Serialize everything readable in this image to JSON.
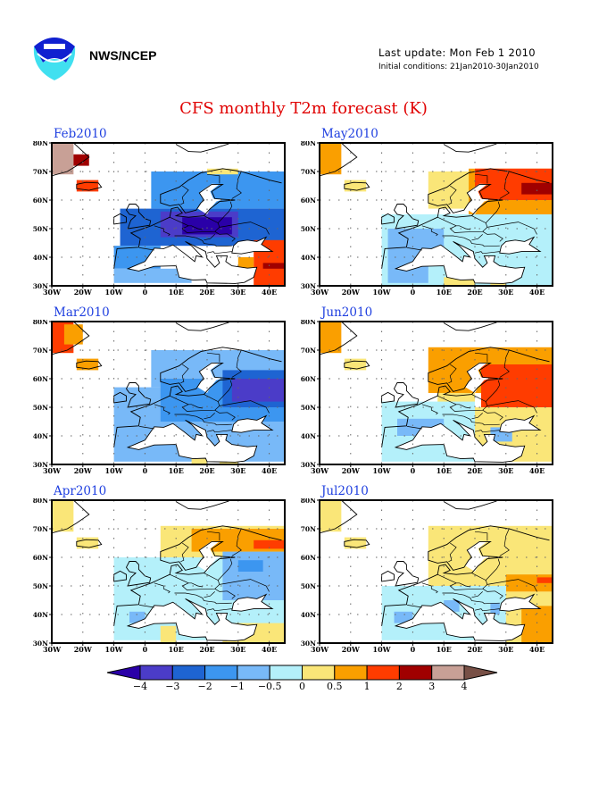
{
  "header": {
    "organization": "NWS/NCEP",
    "last_update": "Last update: Mon Feb 1 2010",
    "initial_conditions": "Initial conditions: 21Jan2010-30Jan2010",
    "title": "CFS monthly T2m forecast (K)",
    "logo_icon": "noaa-logo-icon"
  },
  "chart_data": {
    "type": "heatmap",
    "title": "CFS monthly T2m forecast (K)",
    "units": "K",
    "xlabel": "",
    "ylabel": "",
    "x_ticks": [
      "30W",
      "20W",
      "10W",
      "0",
      "10E",
      "20E",
      "30E",
      "40E"
    ],
    "x_tick_values": [
      -30,
      -20,
      -10,
      0,
      10,
      20,
      30,
      40
    ],
    "y_ticks": [
      "30N",
      "40N",
      "50N",
      "60N",
      "70N",
      "80N"
    ],
    "y_tick_values": [
      30,
      40,
      50,
      60,
      70,
      80
    ],
    "xlim": [
      -30,
      45
    ],
    "ylim": [
      30,
      80
    ],
    "grid": true,
    "colorbar": {
      "levels": [
        "-4",
        "-3",
        "-2",
        "-1",
        "-0.5",
        "0",
        "0.5",
        "1",
        "2",
        "3",
        "4"
      ],
      "colors": [
        "#2a00a8",
        "#4b3cc8",
        "#1e64d2",
        "#3c96f0",
        "#78b9f8",
        "#b4f0fa",
        "#fae678",
        "#fa9f00",
        "#ff3c00",
        "#a00000",
        "#c8a096",
        "#785046"
      ],
      "placement": "bottom"
    },
    "panels": [
      {
        "label": "Feb2010",
        "regions": [
          {
            "lon": [
              -30,
              -23
            ],
            "lat": [
              69,
              80
            ],
            "c": 10
          },
          {
            "lon": [
              -23,
              -18
            ],
            "lat": [
              72,
              76
            ],
            "c": 9
          },
          {
            "lon": [
              -22,
              -15
            ],
            "lat": [
              63,
              67
            ],
            "c": 8
          },
          {
            "lon": [
              2,
              45
            ],
            "lat": [
              57,
              70
            ],
            "c": 3
          },
          {
            "lon": [
              -8,
              45
            ],
            "lat": [
              44,
              57
            ],
            "c": 2
          },
          {
            "lon": [
              5,
              30
            ],
            "lat": [
              47,
              56
            ],
            "c": 1
          },
          {
            "lon": [
              12,
              28
            ],
            "lat": [
              48,
              54
            ],
            "c": 0
          },
          {
            "lon": [
              20,
              30
            ],
            "lat": [
              69,
              71
            ],
            "c": 6
          },
          {
            "lon": [
              -10,
              5
            ],
            "lat": [
              36,
              44
            ],
            "c": 3
          },
          {
            "lon": [
              -10,
              15
            ],
            "lat": [
              31,
              36
            ],
            "c": 4
          },
          {
            "lon": [
              35,
              45
            ],
            "lat": [
              30,
              46
            ],
            "c": 8
          },
          {
            "lon": [
              30,
              35
            ],
            "lat": [
              35,
              40
            ],
            "c": 7
          },
          {
            "lon": [
              38,
              45
            ],
            "lat": [
              36,
              38
            ],
            "c": 9
          }
        ]
      },
      {
        "label": "May2010",
        "regions": [
          {
            "lon": [
              -30,
              -23
            ],
            "lat": [
              69,
              80
            ],
            "c": 7
          },
          {
            "lon": [
              -22,
              -15
            ],
            "lat": [
              63,
              67
            ],
            "c": 6
          },
          {
            "lon": [
              5,
              20
            ],
            "lat": [
              57,
              70
            ],
            "c": 6
          },
          {
            "lon": [
              18,
              45
            ],
            "lat": [
              55,
              71
            ],
            "c": 7
          },
          {
            "lon": [
              20,
              45
            ],
            "lat": [
              60,
              71
            ],
            "c": 8
          },
          {
            "lon": [
              35,
              45
            ],
            "lat": [
              62,
              66
            ],
            "c": 9
          },
          {
            "lon": [
              -10,
              45
            ],
            "lat": [
              30,
              55
            ],
            "c": 5
          },
          {
            "lon": [
              -8,
              10
            ],
            "lat": [
              38,
              50
            ],
            "c": 4
          },
          {
            "lon": [
              -8,
              5
            ],
            "lat": [
              31,
              38
            ],
            "c": 4
          },
          {
            "lon": [
              10,
              20
            ],
            "lat": [
              30,
              33
            ],
            "c": 6
          },
          {
            "lon": [
              25,
              30
            ],
            "lat": [
              30,
              33
            ],
            "c": 6
          }
        ]
      },
      {
        "label": "Mar2010",
        "regions": [
          {
            "lon": [
              -30,
              -23
            ],
            "lat": [
              69,
              80
            ],
            "c": 8
          },
          {
            "lon": [
              -26,
              -20
            ],
            "lat": [
              72,
              79
            ],
            "c": 7
          },
          {
            "lon": [
              -22,
              -15
            ],
            "lat": [
              63,
              67
            ],
            "c": 7
          },
          {
            "lon": [
              2,
              45
            ],
            "lat": [
              57,
              70
            ],
            "c": 4
          },
          {
            "lon": [
              -10,
              45
            ],
            "lat": [
              31,
              57
            ],
            "c": 4
          },
          {
            "lon": [
              5,
              45
            ],
            "lat": [
              45,
              60
            ],
            "c": 3
          },
          {
            "lon": [
              25,
              45
            ],
            "lat": [
              50,
              63
            ],
            "c": 2
          },
          {
            "lon": [
              28,
              45
            ],
            "lat": [
              52,
              60
            ],
            "c": 1
          },
          {
            "lon": [
              15,
              20
            ],
            "lat": [
              30,
              32
            ],
            "c": 6
          },
          {
            "lon": [
              24,
              30
            ],
            "lat": [
              30,
              32
            ],
            "c": 6
          }
        ]
      },
      {
        "label": "Jun2010",
        "regions": [
          {
            "lon": [
              -30,
              -23
            ],
            "lat": [
              69,
              80
            ],
            "c": 7
          },
          {
            "lon": [
              -22,
              -15
            ],
            "lat": [
              63,
              67
            ],
            "c": 6
          },
          {
            "lon": [
              5,
              45
            ],
            "lat": [
              55,
              71
            ],
            "c": 7
          },
          {
            "lon": [
              22,
              45
            ],
            "lat": [
              50,
              65
            ],
            "c": 8
          },
          {
            "lon": [
              8,
              20
            ],
            "lat": [
              50,
              55
            ],
            "c": 6
          },
          {
            "lon": [
              -10,
              20
            ],
            "lat": [
              31,
              52
            ],
            "c": 5
          },
          {
            "lon": [
              -5,
              10
            ],
            "lat": [
              40,
              46
            ],
            "c": 4
          },
          {
            "lon": [
              20,
              45
            ],
            "lat": [
              31,
              50
            ],
            "c": 6
          },
          {
            "lon": [
              25,
              32
            ],
            "lat": [
              38,
              43
            ],
            "c": 4
          }
        ]
      },
      {
        "label": "Apr2010",
        "regions": [
          {
            "lon": [
              -30,
              -23
            ],
            "lat": [
              69,
              80
            ],
            "c": 6
          },
          {
            "lon": [
              -22,
              -15
            ],
            "lat": [
              63,
              67
            ],
            "c": 6
          },
          {
            "lon": [
              5,
              45
            ],
            "lat": [
              60,
              71
            ],
            "c": 6
          },
          {
            "lon": [
              15,
              45
            ],
            "lat": [
              62,
              70
            ],
            "c": 7
          },
          {
            "lon": [
              35,
              45
            ],
            "lat": [
              63,
              66
            ],
            "c": 8
          },
          {
            "lon": [
              -10,
              45
            ],
            "lat": [
              31,
              60
            ],
            "c": 5
          },
          {
            "lon": [
              25,
              45
            ],
            "lat": [
              45,
              62
            ],
            "c": 4
          },
          {
            "lon": [
              30,
              38
            ],
            "lat": [
              55,
              59
            ],
            "c": 3
          },
          {
            "lon": [
              -5,
              0
            ],
            "lat": [
              37,
              41
            ],
            "c": 4
          },
          {
            "lon": [
              5,
              10
            ],
            "lat": [
              30,
              36
            ],
            "c": 6
          },
          {
            "lon": [
              25,
              45
            ],
            "lat": [
              30,
              37
            ],
            "c": 6
          }
        ]
      },
      {
        "label": "Jul2010",
        "regions": [
          {
            "lon": [
              -30,
              -23
            ],
            "lat": [
              69,
              80
            ],
            "c": 6
          },
          {
            "lon": [
              -22,
              -15
            ],
            "lat": [
              63,
              67
            ],
            "c": 6
          },
          {
            "lon": [
              5,
              45
            ],
            "lat": [
              50,
              71
            ],
            "c": 6
          },
          {
            "lon": [
              30,
              45
            ],
            "lat": [
              48,
              54
            ],
            "c": 7
          },
          {
            "lon": [
              40,
              45
            ],
            "lat": [
              51,
              53
            ],
            "c": 8
          },
          {
            "lon": [
              -10,
              30
            ],
            "lat": [
              31,
              50
            ],
            "c": 5
          },
          {
            "lon": [
              -6,
              0
            ],
            "lat": [
              37,
              41
            ],
            "c": 4
          },
          {
            "lon": [
              10,
              15
            ],
            "lat": [
              41,
              45
            ],
            "c": 4
          },
          {
            "lon": [
              25,
              28
            ],
            "lat": [
              40,
              44
            ],
            "c": 4
          },
          {
            "lon": [
              30,
              45
            ],
            "lat": [
              30,
              48
            ],
            "c": 6
          },
          {
            "lon": [
              35,
              45
            ],
            "lat": [
              30,
              43
            ],
            "c": 7
          }
        ]
      }
    ]
  }
}
